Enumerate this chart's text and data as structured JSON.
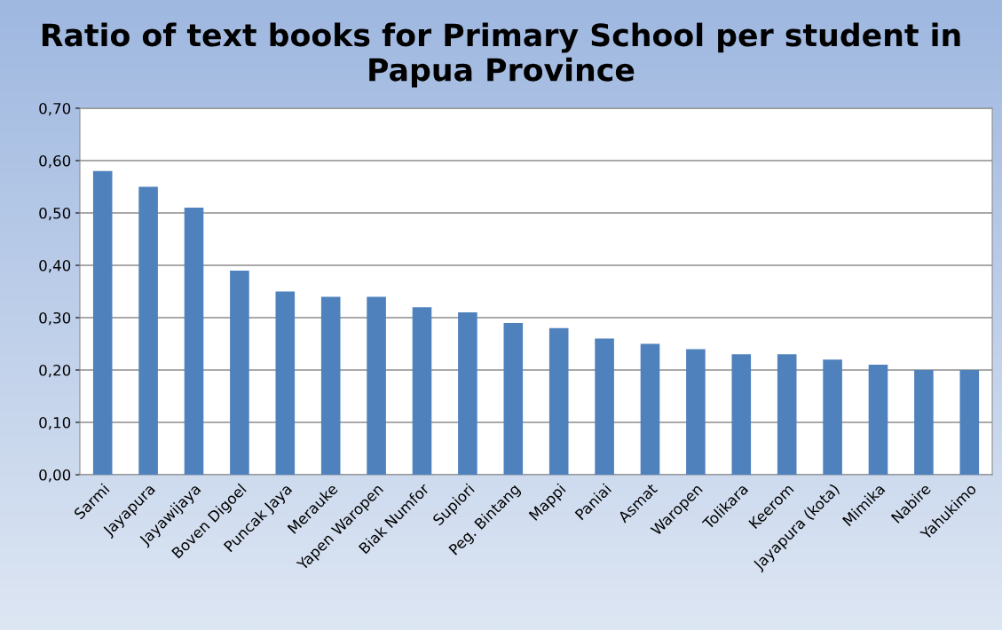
{
  "chart_data": {
    "type": "bar",
    "title": "Ratio of text books for Primary School per student in Papua Province",
    "categories": [
      "Sarmi",
      "Jayapura",
      "Jayawijaya",
      "Boven Digoel",
      "Puncak Jaya",
      "Merauke",
      "Yapen Waropen",
      "Biak Numfor",
      "Supiori",
      "Peg. Bintang",
      "Mappi",
      "Paniai",
      "Asmat",
      "Waropen",
      "Tolikara",
      "Keerom",
      "Jayapura (kota)",
      "Mimika",
      "Nabire",
      "Yahukimo"
    ],
    "values": [
      0.58,
      0.55,
      0.51,
      0.39,
      0.35,
      0.34,
      0.34,
      0.32,
      0.31,
      0.29,
      0.28,
      0.26,
      0.25,
      0.24,
      0.23,
      0.23,
      0.22,
      0.21,
      0.2,
      0.2
    ],
    "color": "#4f81bd",
    "ylim": [
      0,
      0.7
    ],
    "yticks": [
      {
        "value": 0,
        "label": "0,00"
      },
      {
        "value": 0.1,
        "label": "0,10"
      },
      {
        "value": 0.2,
        "label": "0,20"
      },
      {
        "value": 0.3,
        "label": "0,30"
      },
      {
        "value": 0.4,
        "label": "0,40"
      },
      {
        "value": 0.5,
        "label": "0,50"
      },
      {
        "value": 0.6,
        "label": "0,60"
      },
      {
        "value": 0.7,
        "label": "0,70"
      }
    ],
    "grid": "y"
  }
}
